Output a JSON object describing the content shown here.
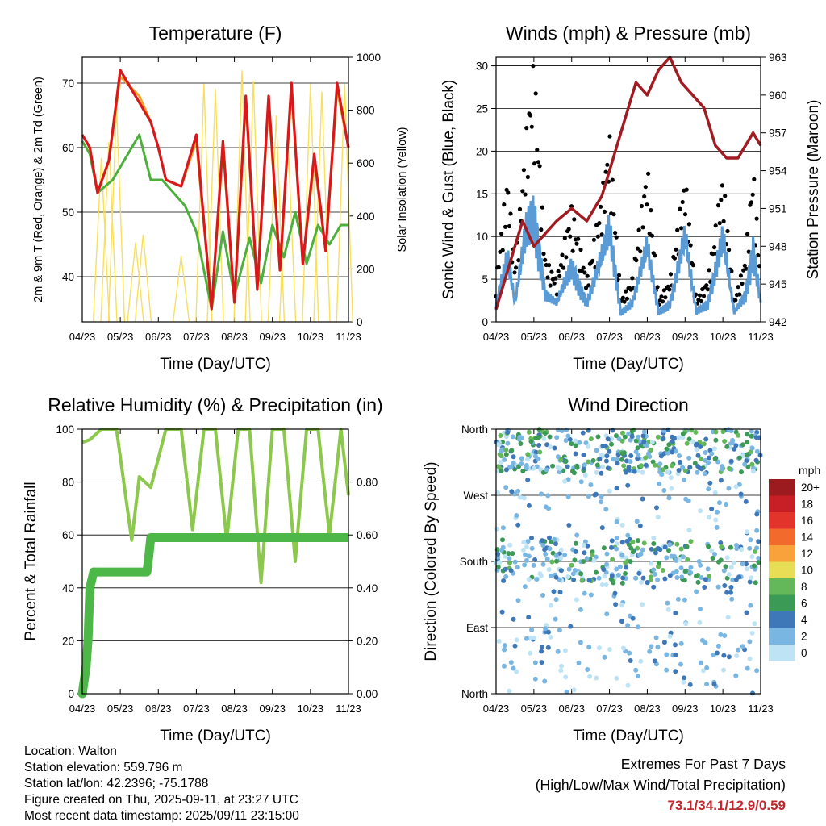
{
  "colors": {
    "temp2m": "#d7191c",
    "temp9m": "#f4a72a",
    "dewpoint": "#4daf3c",
    "solar": "#f7e05a",
    "gust": "#000000",
    "wind": "#5b9bd5",
    "pressure": "#a11c22",
    "rh": "#8cc84b",
    "precip": "#4db848"
  },
  "footer": {
    "location": "Location: Walton",
    "elevation": "Station elevation: 559.796 m",
    "latlon": "Station lat/lon: 42.2396; -75.1788",
    "created": "Figure created on Thu, 2025-09-11, at 23:27 UTC",
    "latest": "Most recent data timestamp: 2025/09/11 23:15:00"
  },
  "extremes": {
    "title": "Extremes For Past 7 Days",
    "subtitle": "(High/Low/Max Wind/Total Precipitation)",
    "values": "73.1/34.1/12.9/0.59"
  },
  "chart_data": [
    {
      "type": "line",
      "title": "Temperature (F)",
      "xlabel": "Time (Day/UTC)",
      "ylabel": "2m & 9m T (Red, Orange) & 2m Td (Green)",
      "y2label": "Solar Insolation (Yellow)",
      "x_ticks": [
        "04/23",
        "05/23",
        "06/23",
        "07/23",
        "08/23",
        "09/23",
        "10/23",
        "11/23"
      ],
      "ylim": [
        33,
        74
      ],
      "y_ticks": [
        40,
        50,
        60,
        70
      ],
      "y2lim": [
        0,
        1000
      ],
      "y2_ticks": [
        0,
        200,
        400,
        600,
        800,
        1000
      ],
      "y2_tick_labels": [
        "0",
        "200",
        "400",
        "600",
        "800",
        "1000"
      ],
      "grid": true,
      "series": [
        {
          "key": "temp2m",
          "x": [
            0,
            0.2,
            0.4,
            0.7,
            1.0,
            1.5,
            1.8,
            2.0,
            2.2,
            2.6,
            3.0,
            3.4,
            3.7,
            4.0,
            4.3,
            4.6,
            4.9,
            5.2,
            5.5,
            5.8,
            6.1,
            6.4,
            6.7,
            7.0
          ],
          "y": [
            62,
            60,
            53,
            58,
            72,
            67,
            64,
            60,
            55,
            54,
            62,
            35,
            61,
            36,
            68,
            38,
            68,
            41,
            70,
            42,
            59,
            44,
            70,
            60
          ]
        },
        {
          "key": "temp9m",
          "x": [
            0,
            0.2,
            0.4,
            0.7,
            1.0,
            1.5,
            1.8,
            2.0,
            2.2,
            2.6,
            3.0,
            3.4,
            3.7,
            4.0,
            4.3,
            4.6,
            4.9,
            5.2,
            5.5,
            5.8,
            6.1,
            6.4,
            6.7,
            7.0
          ],
          "y": [
            62,
            60,
            53,
            58,
            71,
            68,
            64,
            60,
            55,
            54,
            61,
            35,
            60,
            36,
            67,
            38,
            67,
            41,
            69,
            42,
            58,
            44,
            69,
            60
          ]
        },
        {
          "key": "dewpoint",
          "x": [
            0,
            0.2,
            0.4,
            0.8,
            1.3,
            1.5,
            1.8,
            2.1,
            2.4,
            2.7,
            3.0,
            3.4,
            3.7,
            4.0,
            4.4,
            4.7,
            5.0,
            5.3,
            5.6,
            5.9,
            6.2,
            6.5,
            6.8,
            7.0
          ],
          "y": [
            61,
            59,
            53,
            55,
            60,
            62,
            55,
            55,
            53,
            51,
            47,
            35,
            47,
            37,
            46,
            39,
            48,
            43,
            50,
            42,
            48,
            45,
            48,
            48
          ]
        },
        {
          "key": "solar",
          "axis": "y2",
          "x": [
            0.5,
            0.7,
            0.9,
            1.4,
            1.6,
            2.6,
            3.2,
            3.5,
            4.2,
            4.5,
            5.1,
            5.4,
            6.0,
            6.3,
            6.9
          ],
          "y": [
            620,
            680,
            820,
            300,
            330,
            250,
            900,
            880,
            950,
            910,
            780,
            720,
            900,
            870,
            900
          ]
        }
      ]
    },
    {
      "type": "line",
      "title": "Winds (mph) & Pressure (mb)",
      "xlabel": "Time (Day/UTC)",
      "ylabel": "Sonic Wind & Gust (Blue, Black)",
      "y2label": "Station Pressure (Maroon)",
      "x_ticks": [
        "04/23",
        "05/23",
        "06/23",
        "07/23",
        "08/23",
        "09/23",
        "10/23",
        "11/23"
      ],
      "ylim": [
        0,
        31
      ],
      "y_ticks": [
        0,
        5,
        10,
        15,
        20,
        25,
        30
      ],
      "y2lim": [
        942,
        963
      ],
      "y2_ticks": [
        942,
        945,
        948,
        951,
        954,
        957,
        960,
        963
      ],
      "grid": true,
      "series": [
        {
          "key": "pressure",
          "axis": "y2",
          "x": [
            0,
            0.2,
            0.4,
            0.7,
            1.0,
            1.3,
            1.6,
            2.0,
            2.4,
            2.8,
            3.1,
            3.4,
            3.7,
            4.0,
            4.3,
            4.6,
            4.9,
            5.2,
            5.5,
            5.8,
            6.1,
            6.4,
            6.6,
            6.8,
            7.0
          ],
          "y": [
            943,
            945,
            947,
            950,
            948,
            949,
            950,
            951,
            950,
            952,
            955,
            958,
            961,
            960,
            962,
            963,
            961,
            960,
            959,
            956,
            955,
            955,
            956,
            957,
            956
          ]
        },
        {
          "key": "wind",
          "x": [
            0,
            0.3,
            0.5,
            0.8,
            1.0,
            1.3,
            1.6,
            2.0,
            2.4,
            2.8,
            3.0,
            3.3,
            3.6,
            4.0,
            4.3,
            4.6,
            5.0,
            5.3,
            5.6,
            6.0,
            6.3,
            6.6,
            6.8,
            7.0
          ],
          "y": [
            2,
            7,
            2,
            10,
            12,
            3,
            2,
            6,
            2,
            7,
            10,
            1,
            2,
            8,
            1,
            2,
            9,
            1,
            2,
            9,
            1,
            3,
            8,
            2
          ]
        },
        {
          "key": "gust",
          "x": [
            0,
            0.3,
            0.5,
            0.8,
            1.0,
            1.3,
            1.6,
            2.0,
            2.4,
            2.8,
            3.0,
            3.3,
            3.6,
            4.0,
            4.3,
            4.6,
            5.0,
            5.3,
            5.6,
            6.0,
            6.3,
            6.6,
            6.8,
            7.0
          ],
          "y": [
            4,
            14,
            5,
            18,
            25,
            6,
            4,
            11,
            4,
            12,
            18,
            2,
            4,
            15,
            2,
            4,
            14,
            2,
            4,
            14,
            2,
            6,
            15,
            4
          ]
        }
      ]
    },
    {
      "type": "line",
      "title": "Relative Humidity (%) & Precipitation (in)",
      "xlabel": "Time (Day/UTC)",
      "ylabel": "Percent & Total Rainfall",
      "x_ticks": [
        "04/23",
        "05/23",
        "06/23",
        "07/23",
        "08/23",
        "09/23",
        "10/23",
        "11/23"
      ],
      "ylim": [
        0,
        100
      ],
      "y_ticks": [
        0,
        20,
        40,
        60,
        80,
        100
      ],
      "y2lim": [
        0,
        1
      ],
      "y2_ticks": [
        0,
        0.2,
        0.4,
        0.6,
        0.8
      ],
      "y2_tick_labels": [
        "0.00",
        "0.20",
        "0.40",
        "0.60",
        "0.80"
      ],
      "grid": true,
      "series": [
        {
          "key": "rh",
          "x": [
            0,
            0.2,
            0.5,
            0.9,
            1.3,
            1.5,
            1.8,
            2.2,
            2.6,
            2.9,
            3.2,
            3.5,
            3.8,
            4.1,
            4.4,
            4.7,
            5.0,
            5.3,
            5.6,
            5.9,
            6.2,
            6.5,
            6.8,
            7.0
          ],
          "y": [
            95,
            96,
            100,
            100,
            58,
            82,
            78,
            100,
            100,
            62,
            100,
            100,
            58,
            100,
            100,
            42,
            100,
            100,
            50,
            100,
            100,
            60,
            100,
            75
          ]
        },
        {
          "key": "precip",
          "axis": "y2",
          "x": [
            0,
            0.1,
            0.15,
            0.2,
            0.3,
            1.7,
            1.75,
            1.8,
            7.0
          ],
          "y": [
            0,
            0.1,
            0.2,
            0.4,
            0.46,
            0.46,
            0.52,
            0.59,
            0.59
          ]
        }
      ]
    },
    {
      "type": "scatter",
      "title": "Wind Direction",
      "xlabel": "Time (Day/UTC)",
      "ylabel": "Direction (Colored By Speed)",
      "x_ticks": [
        "04/23",
        "05/23",
        "06/23",
        "07/23",
        "08/23",
        "09/23",
        "10/23",
        "11/23"
      ],
      "y_tick_labels": [
        "North",
        "East",
        "South",
        "West",
        "North"
      ],
      "ylim": [
        0,
        360
      ],
      "grid": true,
      "legend": {
        "title": "mph",
        "labels": [
          "20+",
          "18",
          "16",
          "14",
          "12",
          "10",
          "8",
          "6",
          "4",
          "2",
          "0"
        ],
        "colors": [
          "#9b1b1e",
          "#c81e25",
          "#e2342b",
          "#f26b2c",
          "#f9a13a",
          "#e8de55",
          "#64b85a",
          "#3c9a57",
          "#3f78b8",
          "#7ab6e2",
          "#bde3f5"
        ],
        "placement": "right"
      }
    }
  ]
}
